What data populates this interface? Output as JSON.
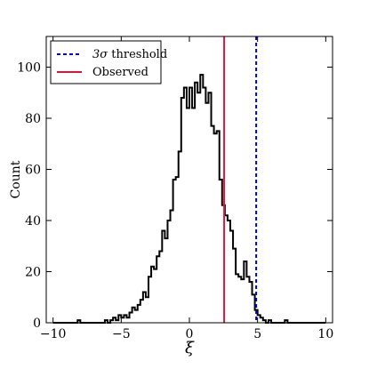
{
  "chart_data": {
    "type": "histogram",
    "xlabel": "ξ",
    "ylabel": "Count",
    "xlim": [
      -10.5,
      10.5
    ],
    "ylim": [
      0,
      112
    ],
    "xticks": [
      -10,
      -5,
      0,
      5,
      10
    ],
    "xtick_labels": [
      "−10",
      "−5",
      "0",
      "5",
      "10"
    ],
    "yticks": [
      0,
      20,
      40,
      60,
      80,
      100
    ],
    "ytick_labels": [
      "0",
      "20",
      "40",
      "60",
      "80",
      "100"
    ],
    "bin_width": 0.2,
    "bins": [
      [
        -8.2,
        1
      ],
      [
        -8.0,
        0
      ],
      [
        -7.8,
        0
      ],
      [
        -7.6,
        0
      ],
      [
        -7.4,
        0
      ],
      [
        -7.2,
        0
      ],
      [
        -7.0,
        0
      ],
      [
        -6.8,
        0
      ],
      [
        -6.6,
        0
      ],
      [
        -6.4,
        0
      ],
      [
        -6.2,
        1
      ],
      [
        -6.0,
        0
      ],
      [
        -5.8,
        1
      ],
      [
        -5.6,
        2
      ],
      [
        -5.4,
        1
      ],
      [
        -5.2,
        3
      ],
      [
        -5.0,
        2
      ],
      [
        -4.8,
        3
      ],
      [
        -4.6,
        2
      ],
      [
        -4.4,
        4
      ],
      [
        -4.2,
        6
      ],
      [
        -4.0,
        5
      ],
      [
        -3.8,
        7
      ],
      [
        -3.6,
        9
      ],
      [
        -3.4,
        12
      ],
      [
        -3.2,
        10
      ],
      [
        -3.0,
        18
      ],
      [
        -2.8,
        22
      ],
      [
        -2.6,
        21
      ],
      [
        -2.4,
        26
      ],
      [
        -2.2,
        28
      ],
      [
        -2.0,
        36
      ],
      [
        -1.8,
        33
      ],
      [
        -1.6,
        40
      ],
      [
        -1.4,
        44
      ],
      [
        -1.2,
        56
      ],
      [
        -1.0,
        57
      ],
      [
        -0.8,
        67
      ],
      [
        -0.6,
        88
      ],
      [
        -0.4,
        92
      ],
      [
        -0.2,
        84
      ],
      [
        0.0,
        92
      ],
      [
        0.2,
        84
      ],
      [
        0.4,
        94
      ],
      [
        0.6,
        90
      ],
      [
        0.8,
        97
      ],
      [
        1.0,
        92
      ],
      [
        1.2,
        86
      ],
      [
        1.4,
        90
      ],
      [
        1.6,
        77
      ],
      [
        1.8,
        74
      ],
      [
        2.0,
        75
      ],
      [
        2.2,
        56
      ],
      [
        2.4,
        46
      ],
      [
        2.6,
        42
      ],
      [
        2.8,
        40
      ],
      [
        3.0,
        36
      ],
      [
        3.2,
        29
      ],
      [
        3.4,
        19
      ],
      [
        3.6,
        18
      ],
      [
        3.8,
        17
      ],
      [
        4.0,
        24
      ],
      [
        4.2,
        18
      ],
      [
        4.4,
        16
      ],
      [
        4.6,
        11
      ],
      [
        4.8,
        5
      ],
      [
        5.0,
        3
      ],
      [
        5.2,
        2
      ],
      [
        5.4,
        1
      ],
      [
        5.6,
        0
      ],
      [
        5.8,
        1
      ],
      [
        6.0,
        0
      ],
      [
        6.2,
        0
      ],
      [
        6.4,
        0
      ],
      [
        6.6,
        0
      ],
      [
        6.8,
        0
      ],
      [
        7.0,
        1
      ],
      [
        7.2,
        0
      ]
    ],
    "hist_x_min": -10,
    "hist_x_max": 10,
    "reference_lines": [
      {
        "name": "3σ threshold",
        "x": 4.9,
        "color": "#0000cc",
        "style": "dashed"
      },
      {
        "name": "Observed",
        "x": 2.55,
        "color": "#dc143c",
        "style": "solid"
      }
    ],
    "legend": {
      "placement": "top-left",
      "entries": [
        {
          "label_main": "3σ",
          "label_rest": " threshold",
          "color": "#0000cc",
          "style": "dashed"
        },
        {
          "label_main": "Observed",
          "label_rest": "",
          "color": "#dc143c",
          "style": "solid"
        }
      ]
    },
    "grid": false
  }
}
